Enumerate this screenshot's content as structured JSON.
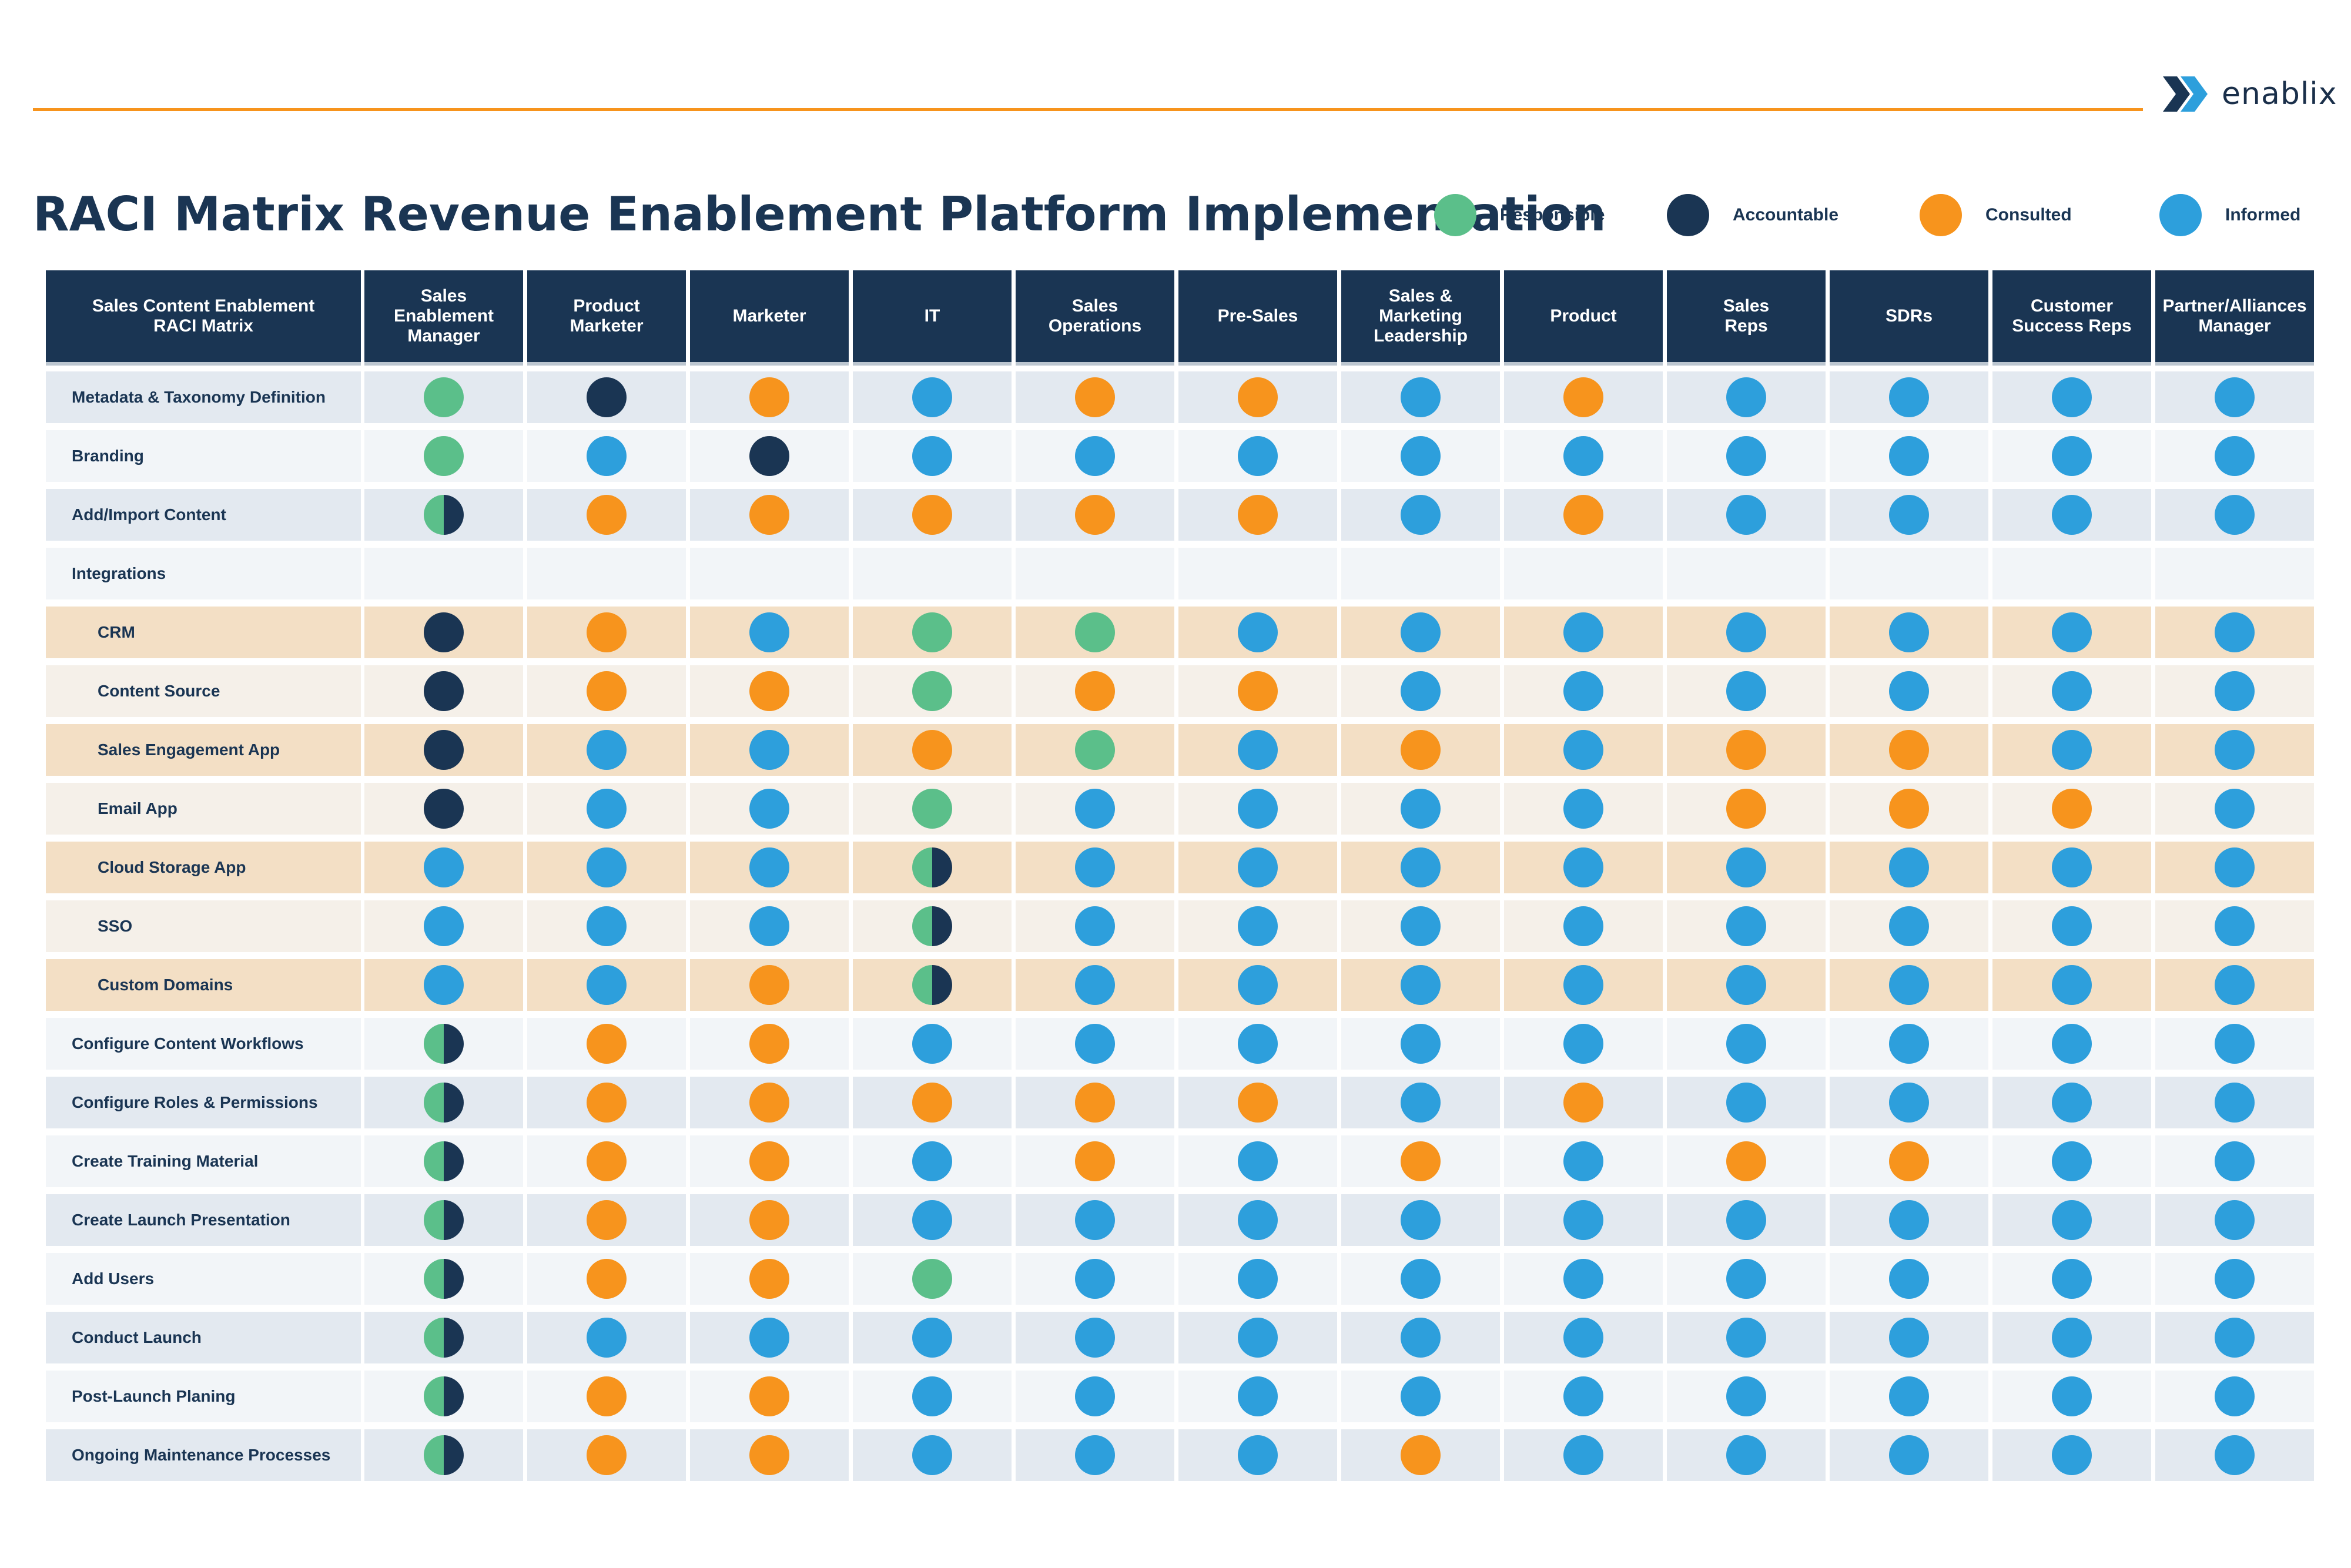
{
  "brand": {
    "name": "enablix"
  },
  "title": "RACI Matrix Revenue Enablement Platform Implementation",
  "colors": {
    "R": "#5bbf8a",
    "A": "#1a3553",
    "C": "#f7941d",
    "I": "#2d9fdc"
  },
  "legend": [
    {
      "code": "R",
      "label": "Responsible"
    },
    {
      "code": "A",
      "label": "Accountable"
    },
    {
      "code": "C",
      "label": "Consulted"
    },
    {
      "code": "I",
      "label": "Informed"
    }
  ],
  "matrix": {
    "corner_label": "Sales Content Enablement\nRACI Matrix",
    "roles": [
      "Sales\nEnablement\nManager",
      "Product\nMarketer",
      "Marketer",
      "IT",
      "Sales\nOperations",
      "Pre-Sales",
      "Sales &\nMarketing\nLeadership",
      "Product",
      "Sales\nReps",
      "SDRs",
      "Customer\nSuccess Reps",
      "Partner/Alliances\nManager"
    ],
    "rows": [
      {
        "task": "Metadata & Taxonomy Definition",
        "cells": [
          "R",
          "A",
          "C",
          "I",
          "C",
          "C",
          "I",
          "C",
          "I",
          "I",
          "I",
          "I"
        ]
      },
      {
        "task": "Branding",
        "cells": [
          "R",
          "I",
          "A",
          "I",
          "I",
          "I",
          "I",
          "I",
          "I",
          "I",
          "I",
          "I"
        ]
      },
      {
        "task": "Add/Import Content",
        "cells": [
          "RA",
          "C",
          "C",
          "C",
          "C",
          "C",
          "I",
          "C",
          "I",
          "I",
          "I",
          "I"
        ]
      },
      {
        "task": "Integrations",
        "cells": []
      },
      {
        "task": "CRM",
        "sub": true,
        "cells": [
          "A",
          "C",
          "I",
          "R",
          "R",
          "I",
          "I",
          "I",
          "I",
          "I",
          "I",
          "I"
        ]
      },
      {
        "task": "Content Source",
        "sub": true,
        "cells": [
          "A",
          "C",
          "C",
          "R",
          "C",
          "C",
          "I",
          "I",
          "I",
          "I",
          "I",
          "I"
        ]
      },
      {
        "task": "Sales Engagement App",
        "sub": true,
        "cells": [
          "A",
          "I",
          "I",
          "C",
          "R",
          "I",
          "C",
          "I",
          "C",
          "C",
          "I",
          "I"
        ]
      },
      {
        "task": "Email App",
        "sub": true,
        "cells": [
          "A",
          "I",
          "I",
          "R",
          "I",
          "I",
          "I",
          "I",
          "C",
          "C",
          "C",
          "I"
        ]
      },
      {
        "task": "Cloud Storage App",
        "sub": true,
        "cells": [
          "I",
          "I",
          "I",
          "RA",
          "I",
          "I",
          "I",
          "I",
          "I",
          "I",
          "I",
          "I"
        ]
      },
      {
        "task": "SSO",
        "sub": true,
        "cells": [
          "I",
          "I",
          "I",
          "RA",
          "I",
          "I",
          "I",
          "I",
          "I",
          "I",
          "I",
          "I"
        ]
      },
      {
        "task": "Custom Domains",
        "sub": true,
        "cells": [
          "I",
          "I",
          "C",
          "RA",
          "I",
          "I",
          "I",
          "I",
          "I",
          "I",
          "I",
          "I"
        ]
      },
      {
        "task": "Configure Content Workflows",
        "cells": [
          "RA",
          "C",
          "C",
          "I",
          "I",
          "I",
          "I",
          "I",
          "I",
          "I",
          "I",
          "I"
        ]
      },
      {
        "task": "Configure Roles & Permissions",
        "cells": [
          "RA",
          "C",
          "C",
          "C",
          "C",
          "C",
          "I",
          "C",
          "I",
          "I",
          "I",
          "I"
        ]
      },
      {
        "task": "Create Training Material",
        "cells": [
          "RA",
          "C",
          "C",
          "I",
          "C",
          "I",
          "C",
          "I",
          "C",
          "C",
          "I",
          "I"
        ]
      },
      {
        "task": "Create Launch Presentation",
        "cells": [
          "RA",
          "C",
          "C",
          "I",
          "I",
          "I",
          "I",
          "I",
          "I",
          "I",
          "I",
          "I"
        ]
      },
      {
        "task": "Add Users",
        "cells": [
          "RA",
          "C",
          "C",
          "R",
          "I",
          "I",
          "I",
          "I",
          "I",
          "I",
          "I",
          "I"
        ]
      },
      {
        "task": "Conduct Launch",
        "cells": [
          "RA",
          "I",
          "I",
          "I",
          "I",
          "I",
          "I",
          "I",
          "I",
          "I",
          "I",
          "I"
        ]
      },
      {
        "task": "Post-Launch Planing",
        "cells": [
          "RA",
          "C",
          "C",
          "I",
          "I",
          "I",
          "I",
          "I",
          "I",
          "I",
          "I",
          "I"
        ]
      },
      {
        "task": "Ongoing Maintenance Processes",
        "cells": [
          "RA",
          "C",
          "C",
          "I",
          "I",
          "I",
          "C",
          "I",
          "I",
          "I",
          "I",
          "I"
        ]
      }
    ]
  }
}
